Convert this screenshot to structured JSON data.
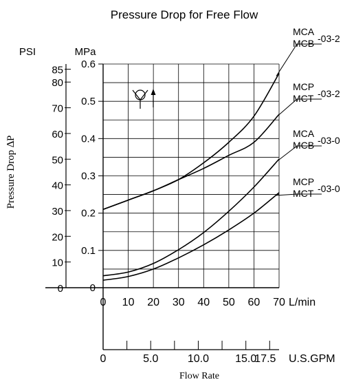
{
  "chart_data": {
    "type": "line",
    "title": "Pressure Drop for Free Flow",
    "ylabel": "Pressure Drop ∆P",
    "xlabel": "Flow Rate",
    "primary_y_unit": "MPa",
    "secondary_y_unit": "PSI",
    "primary_x_unit": "L/min",
    "secondary_x_unit": "U.S.GPM",
    "ylim": [
      0,
      0.6
    ],
    "xlim": [
      0,
      70
    ],
    "grid": true,
    "y_ticks": [
      "0",
      "0.1",
      "0.2",
      "0.3",
      "0.4",
      "0.5",
      "0.6"
    ],
    "psi_ticks": [
      "0",
      "10",
      "20",
      "30",
      "40",
      "50",
      "60",
      "70",
      "80",
      "85"
    ],
    "x_ticks": [
      "0",
      "10",
      "20",
      "30",
      "40",
      "50",
      "60",
      "70"
    ],
    "gpm_ticks": [
      "0",
      "5.0",
      "10.0",
      "15.0",
      "17.5"
    ],
    "series": [
      {
        "name_lines": [
          "MCA",
          "MCB"
        ],
        "suffix": "-03-2",
        "x": [
          0,
          10,
          20,
          30,
          40,
          50,
          60,
          70
        ],
        "values": [
          0.21,
          0.235,
          0.26,
          0.29,
          0.335,
          0.39,
          0.46,
          0.575
        ]
      },
      {
        "name_lines": [
          "MCP",
          "MCT"
        ],
        "suffix": "-03-2",
        "x": [
          0,
          10,
          20,
          30,
          40,
          50,
          60,
          70
        ],
        "values": [
          0.21,
          0.235,
          0.26,
          0.29,
          0.32,
          0.355,
          0.39,
          0.465
        ]
      },
      {
        "name_lines": [
          "MCA",
          "MCB"
        ],
        "suffix": "-03-0",
        "x": [
          0,
          10,
          20,
          30,
          40,
          50,
          60,
          70
        ],
        "values": [
          0.032,
          0.042,
          0.065,
          0.102,
          0.148,
          0.205,
          0.27,
          0.345
        ]
      },
      {
        "name_lines": [
          "MCP",
          "MCT"
        ],
        "suffix": "-03-0",
        "x": [
          0,
          10,
          20,
          30,
          40,
          50,
          60,
          70
        ],
        "values": [
          0.02,
          0.03,
          0.05,
          0.08,
          0.115,
          0.155,
          0.2,
          0.255
        ]
      }
    ]
  }
}
